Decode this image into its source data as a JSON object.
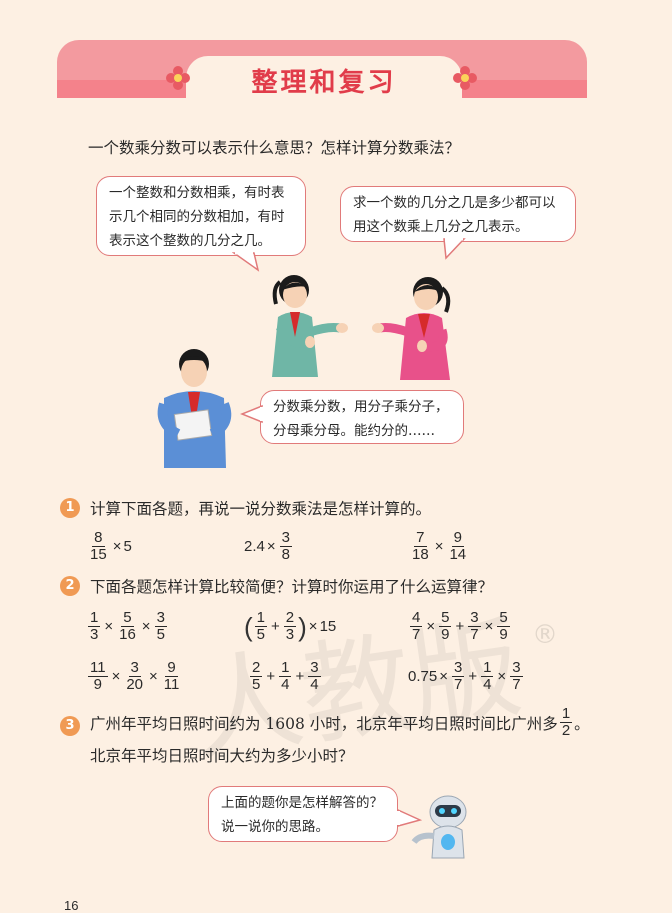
{
  "header": {
    "title": "整理和复习"
  },
  "intro": "一个数乘分数可以表示什么意思？怎样计算分数乘法？",
  "bubbles": {
    "girl_left": [
      "一个整数和分数相乘，有时表",
      "示几个相同的分数相加，有时",
      "表示这个整数的几分之几。"
    ],
    "girl_right": [
      "求一个数的几分之几是多少都可以",
      "用这个数乘上几分之几表示。"
    ],
    "boy": [
      "分数乘分数，用分子乘分子，",
      "分母乘分母。能约分的……"
    ],
    "robot": [
      "上面的题你是怎样解答的？",
      "说一说你的思路。"
    ]
  },
  "q1": {
    "num": "1",
    "text": "计算下面各题，再说一说分数乘法是怎样计算的。",
    "e1": {
      "f1n": "8",
      "f1d": "15",
      "times": "×",
      "tail": "5"
    },
    "e2": {
      "head": "2.4",
      "times": "×",
      "f1n": "3",
      "f1d": "8"
    },
    "e3": {
      "f1n": "7",
      "f1d": "18",
      "times": "×",
      "f2n": "9",
      "f2d": "14"
    }
  },
  "q2": {
    "num": "2",
    "text": "下面各题怎样计算比较简便？计算时你运用了什么运算律？",
    "r1e1": {
      "an": "1",
      "ad": "3",
      "bn": "5",
      "bd": "16",
      "cn": "3",
      "cd": "5",
      "op1": "×",
      "op2": "×"
    },
    "r1e2": {
      "lp": "(",
      "an": "1",
      "ad": "5",
      "op1": "+",
      "bn": "2",
      "bd": "3",
      "rp": ")",
      "op2": "×",
      "tail": "15"
    },
    "r1e3": {
      "an": "4",
      "ad": "7",
      "op1": "×",
      "bn": "5",
      "bd": "9",
      "op2": "+",
      "cn": "3",
      "cd": "7",
      "op3": "×",
      "dn": "5",
      "dd": "9"
    },
    "r2e1": {
      "an": "11",
      "ad": "9",
      "op1": "×",
      "bn": "3",
      "bd": "20",
      "op2": "×",
      "cn": "9",
      "cd": "11"
    },
    "r2e2": {
      "an": "2",
      "ad": "5",
      "op1": "+",
      "bn": "1",
      "bd": "4",
      "op2": "+",
      "cn": "3",
      "cd": "4"
    },
    "r2e3": {
      "head": "0.75",
      "op1": "×",
      "an": "3",
      "ad": "7",
      "op2": "+",
      "bn": "1",
      "bd": "4",
      "op3": "×",
      "cn": "3",
      "cd": "7"
    }
  },
  "q3": {
    "num": "3",
    "line1a": "广州年平均日照时间约为 1608 小时，北京年平均日照时间比广州多",
    "fn": "1",
    "fd": "2",
    "end": "。",
    "line2": "北京年平均日照时间大约为多少小时？"
  },
  "watermark": "人教版",
  "registered": "®",
  "page_number": "16",
  "colors": {
    "banner": "#f39a9f",
    "title": "#e13c4a",
    "badge": "#f09a54",
    "page_bg": "#fdf0e3"
  }
}
